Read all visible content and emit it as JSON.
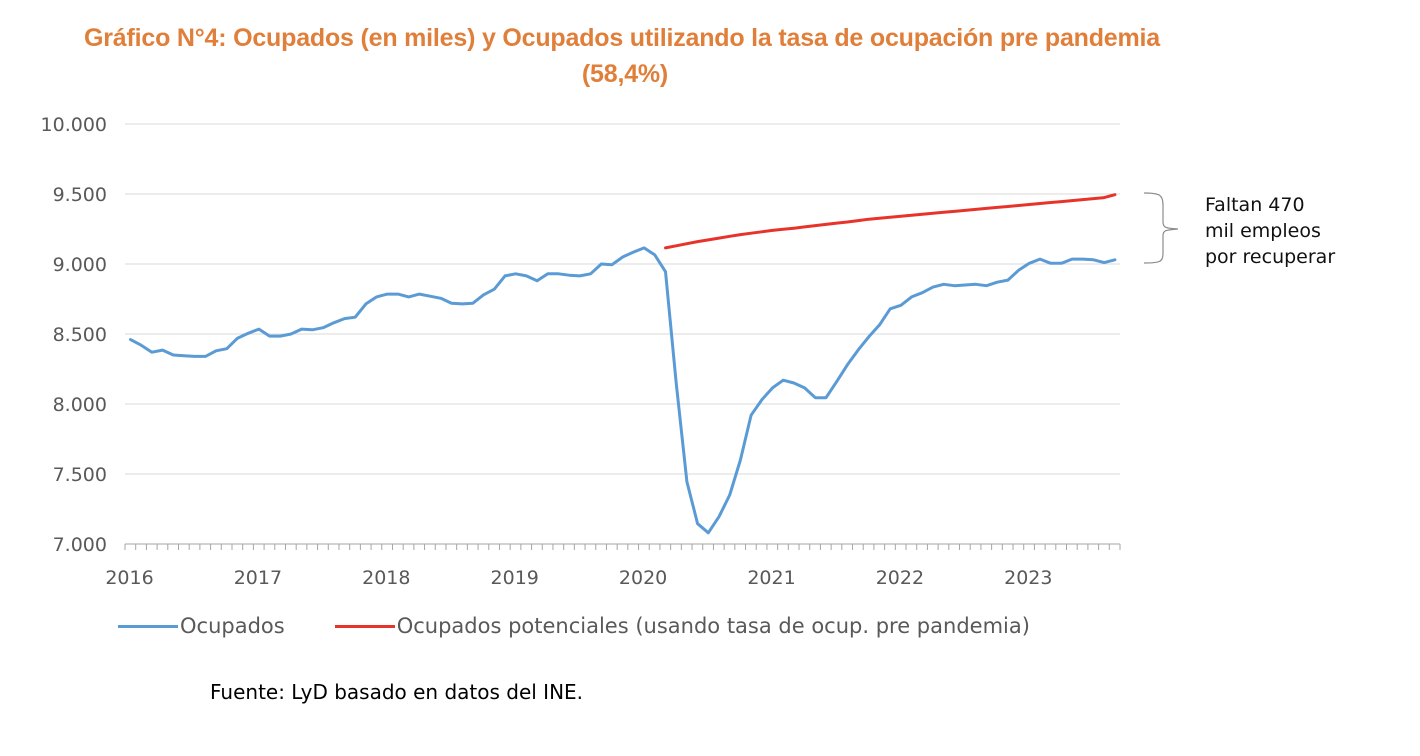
{
  "title": {
    "line1": "Gráfico N°4: Ocupados (en miles) y Ocupados utilizando la tasa de ocupación pre pandemia",
    "line2": "(58,4%)"
  },
  "annotation": {
    "lines": [
      "Faltan 470",
      "mil empleos",
      "por recuperar"
    ]
  },
  "legend": {
    "items": [
      {
        "label": "Ocupados",
        "color": "#5B9BD5"
      },
      {
        "label": "Ocupados potenciales (usando tasa de ocup. pre pandemia)",
        "color": "#E8332A"
      }
    ]
  },
  "source": "Fuente: LyD basado en datos del INE.",
  "chart_data": {
    "type": "line",
    "title": "Gráfico N°4: Ocupados (en miles) y Ocupados utilizando la tasa de ocupación pre pandemia (58,4%)",
    "xlabel": "",
    "ylabel": "",
    "ylim": [
      7000,
      10000
    ],
    "yticks": [
      7000,
      7500,
      8000,
      8500,
      9000,
      9500,
      10000
    ],
    "ytick_labels": [
      "7.000",
      "7.500",
      "8.000",
      "8.500",
      "9.000",
      "9.500",
      "10.000"
    ],
    "xtick_labels": [
      "2016",
      "2017",
      "2018",
      "2019",
      "2020",
      "2021",
      "2022",
      "2023"
    ],
    "x_start": "2016-01",
    "x_frequency": "monthly",
    "x_count": 93,
    "grid": "horizontal",
    "legend_position": "bottom",
    "series": [
      {
        "name": "Ocupados",
        "color": "#5B9BD5",
        "start_index": 0,
        "values": [
          8460,
          8420,
          8370,
          8385,
          8350,
          8345,
          8340,
          8340,
          8380,
          8395,
          8470,
          8505,
          8535,
          8485,
          8485,
          8500,
          8535,
          8530,
          8545,
          8580,
          8610,
          8620,
          8715,
          8765,
          8785,
          8785,
          8765,
          8785,
          8770,
          8755,
          8720,
          8715,
          8720,
          8780,
          8820,
          8915,
          8930,
          8915,
          8880,
          8930,
          8930,
          8920,
          8915,
          8930,
          9000,
          8995,
          9050,
          9085,
          9115,
          9065,
          8945,
          8150,
          7445,
          7145,
          7080,
          7195,
          7350,
          7600,
          7920,
          8030,
          8115,
          8170,
          8150,
          8115,
          8045,
          8045,
          8160,
          8280,
          8385,
          8480,
          8565,
          8680,
          8705,
          8765,
          8795,
          8835,
          8855,
          8845,
          8850,
          8855,
          8845,
          8870,
          8885,
          8955,
          9005,
          9035,
          9005,
          9005,
          9035,
          9035,
          9030,
          9010,
          9030
        ]
      },
      {
        "name": "Ocupados potenciales (usando tasa de ocup. pre pandemia)",
        "color": "#E8332A",
        "start_index": 50,
        "values": [
          9115,
          9130,
          9145,
          9160,
          9172,
          9185,
          9198,
          9210,
          9220,
          9230,
          9240,
          9248,
          9256,
          9265,
          9274,
          9283,
          9292,
          9300,
          9310,
          9320,
          9327,
          9334,
          9341,
          9348,
          9355,
          9362,
          9369,
          9376,
          9383,
          9390,
          9397,
          9404,
          9411,
          9418,
          9425,
          9432,
          9439,
          9446,
          9453,
          9460,
          9467,
          9474,
          9495
        ]
      }
    ],
    "annotation": "Faltan 470 mil empleos por recuperar"
  }
}
